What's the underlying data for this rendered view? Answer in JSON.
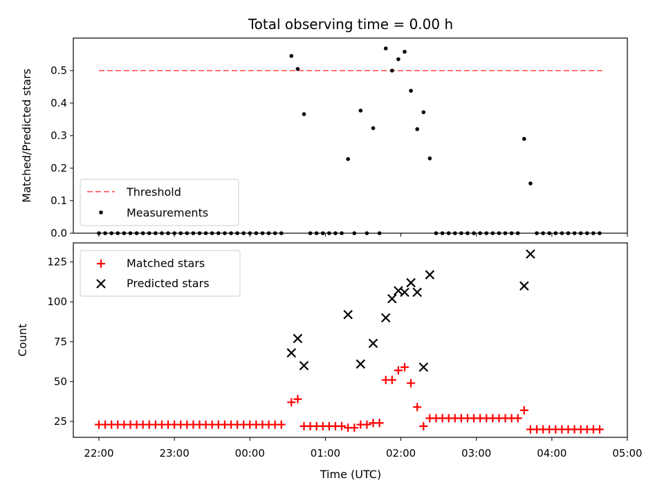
{
  "chart_data": {
    "title": "Total observing time = 0.00 h",
    "xlabel": "Time (UTC)",
    "x_ticks": [
      "22:00",
      "23:00",
      "00:00",
      "01:00",
      "02:00",
      "03:00",
      "04:00",
      "05:00"
    ],
    "panels": [
      {
        "type": "scatter",
        "ylabel": "Matched/Predicted stars",
        "ylim": [
          0,
          0.6
        ],
        "y_ticks": [
          "0.0",
          "0.1",
          "0.2",
          "0.3",
          "0.4",
          "0.5"
        ],
        "legend": {
          "placement": "lower-left",
          "entries": [
            "Threshold",
            "Measurements"
          ]
        },
        "threshold": {
          "name": "Threshold",
          "value": 0.5,
          "x_start": "22:00",
          "x_end": "04:40",
          "color": "#ff6f6f"
        },
        "series": [
          {
            "name": "Measurements",
            "color": "#000000",
            "points": [
              [
                "22:00",
                0
              ],
              [
                "22:05",
                0
              ],
              [
                "22:10",
                0
              ],
              [
                "22:15",
                0
              ],
              [
                "22:20",
                0
              ],
              [
                "22:25",
                0
              ],
              [
                "22:30",
                0
              ],
              [
                "22:35",
                0
              ],
              [
                "22:40",
                0
              ],
              [
                "22:45",
                0
              ],
              [
                "22:50",
                0
              ],
              [
                "22:55",
                0
              ],
              [
                "23:00",
                0
              ],
              [
                "23:05",
                0
              ],
              [
                "23:10",
                0
              ],
              [
                "23:15",
                0
              ],
              [
                "23:20",
                0
              ],
              [
                "23:25",
                0
              ],
              [
                "23:30",
                0
              ],
              [
                "23:35",
                0
              ],
              [
                "23:40",
                0
              ],
              [
                "23:45",
                0
              ],
              [
                "23:50",
                0
              ],
              [
                "23:55",
                0
              ],
              [
                "00:00",
                0
              ],
              [
                "00:05",
                0
              ],
              [
                "00:10",
                0
              ],
              [
                "00:15",
                0
              ],
              [
                "00:20",
                0
              ],
              [
                "00:25",
                0
              ],
              [
                "00:33",
                0.545
              ],
              [
                "00:38",
                0.505
              ],
              [
                "00:43",
                0.366
              ],
              [
                "00:48",
                0
              ],
              [
                "00:53",
                0
              ],
              [
                "00:58",
                0
              ],
              [
                "01:03",
                0
              ],
              [
                "01:08",
                0
              ],
              [
                "01:13",
                0
              ],
              [
                "01:18",
                0.228
              ],
              [
                "01:23",
                0
              ],
              [
                "01:28",
                0.377
              ],
              [
                "01:33",
                0
              ],
              [
                "01:38",
                0.323
              ],
              [
                "01:43",
                0
              ],
              [
                "01:48",
                0.568
              ],
              [
                "01:53",
                0.5
              ],
              [
                "01:58",
                0.535
              ],
              [
                "02:03",
                0.558
              ],
              [
                "02:08",
                0.438
              ],
              [
                "02:13",
                0.32
              ],
              [
                "02:18",
                0.372
              ],
              [
                "02:23",
                0.23
              ],
              [
                "02:28",
                0
              ],
              [
                "02:33",
                0
              ],
              [
                "02:38",
                0
              ],
              [
                "02:43",
                0
              ],
              [
                "02:48",
                0
              ],
              [
                "02:53",
                0
              ],
              [
                "02:58",
                0
              ],
              [
                "03:03",
                0
              ],
              [
                "03:08",
                0
              ],
              [
                "03:13",
                0
              ],
              [
                "03:18",
                0
              ],
              [
                "03:23",
                0
              ],
              [
                "03:28",
                0
              ],
              [
                "03:33",
                0
              ],
              [
                "03:38",
                0.29
              ],
              [
                "03:43",
                0.153
              ],
              [
                "03:48",
                0
              ],
              [
                "03:53",
                0
              ],
              [
                "03:58",
                0
              ],
              [
                "04:03",
                0
              ],
              [
                "04:08",
                0
              ],
              [
                "04:13",
                0
              ],
              [
                "04:18",
                0
              ],
              [
                "04:23",
                0
              ],
              [
                "04:28",
                0
              ],
              [
                "04:33",
                0
              ],
              [
                "04:38",
                0
              ]
            ]
          }
        ]
      },
      {
        "type": "scatter",
        "ylabel": "Count",
        "ylim": [
          15,
          137
        ],
        "y_ticks": [
          "25",
          "50",
          "75",
          "100",
          "125"
        ],
        "legend": {
          "placement": "upper-left",
          "entries": [
            "Matched stars",
            "Predicted stars"
          ]
        },
        "series": [
          {
            "name": "Matched stars",
            "marker": "plus",
            "color": "#ff0000",
            "points": [
              [
                "22:00",
                23
              ],
              [
                "22:05",
                23
              ],
              [
                "22:10",
                23
              ],
              [
                "22:15",
                23
              ],
              [
                "22:20",
                23
              ],
              [
                "22:25",
                23
              ],
              [
                "22:30",
                23
              ],
              [
                "22:35",
                23
              ],
              [
                "22:40",
                23
              ],
              [
                "22:45",
                23
              ],
              [
                "22:50",
                23
              ],
              [
                "22:55",
                23
              ],
              [
                "23:00",
                23
              ],
              [
                "23:05",
                23
              ],
              [
                "23:10",
                23
              ],
              [
                "23:15",
                23
              ],
              [
                "23:20",
                23
              ],
              [
                "23:25",
                23
              ],
              [
                "23:30",
                23
              ],
              [
                "23:35",
                23
              ],
              [
                "23:40",
                23
              ],
              [
                "23:45",
                23
              ],
              [
                "23:50",
                23
              ],
              [
                "23:55",
                23
              ],
              [
                "00:00",
                23
              ],
              [
                "00:05",
                23
              ],
              [
                "00:10",
                23
              ],
              [
                "00:15",
                23
              ],
              [
                "00:20",
                23
              ],
              [
                "00:25",
                23
              ],
              [
                "00:33",
                37
              ],
              [
                "00:38",
                39
              ],
              [
                "00:43",
                22
              ],
              [
                "00:48",
                22
              ],
              [
                "00:53",
                22
              ],
              [
                "00:58",
                22
              ],
              [
                "01:03",
                22
              ],
              [
                "01:08",
                22
              ],
              [
                "01:13",
                22
              ],
              [
                "01:18",
                21
              ],
              [
                "01:23",
                21
              ],
              [
                "01:28",
                23
              ],
              [
                "01:33",
                23
              ],
              [
                "01:38",
                24
              ],
              [
                "01:43",
                24
              ],
              [
                "01:48",
                51
              ],
              [
                "01:53",
                51
              ],
              [
                "01:58",
                57
              ],
              [
                "02:03",
                59
              ],
              [
                "02:08",
                49
              ],
              [
                "02:13",
                34
              ],
              [
                "02:18",
                22
              ],
              [
                "02:23",
                27
              ],
              [
                "02:28",
                27
              ],
              [
                "02:33",
                27
              ],
              [
                "02:38",
                27
              ],
              [
                "02:43",
                27
              ],
              [
                "02:48",
                27
              ],
              [
                "02:53",
                27
              ],
              [
                "02:58",
                27
              ],
              [
                "03:03",
                27
              ],
              [
                "03:08",
                27
              ],
              [
                "03:13",
                27
              ],
              [
                "03:18",
                27
              ],
              [
                "03:23",
                27
              ],
              [
                "03:28",
                27
              ],
              [
                "03:33",
                27
              ],
              [
                "03:38",
                32
              ],
              [
                "03:43",
                20
              ],
              [
                "03:48",
                20
              ],
              [
                "03:53",
                20
              ],
              [
                "03:58",
                20
              ],
              [
                "04:03",
                20
              ],
              [
                "04:08",
                20
              ],
              [
                "04:13",
                20
              ],
              [
                "04:18",
                20
              ],
              [
                "04:23",
                20
              ],
              [
                "04:28",
                20
              ],
              [
                "04:33",
                20
              ],
              [
                "04:38",
                20
              ]
            ]
          },
          {
            "name": "Predicted stars",
            "marker": "x",
            "color": "#000000",
            "points": [
              [
                "00:33",
                68
              ],
              [
                "00:38",
                77
              ],
              [
                "00:43",
                60
              ],
              [
                "01:18",
                92
              ],
              [
                "01:28",
                61
              ],
              [
                "01:38",
                74
              ],
              [
                "01:48",
                90
              ],
              [
                "01:53",
                102
              ],
              [
                "01:58",
                107
              ],
              [
                "02:03",
                106
              ],
              [
                "02:08",
                112
              ],
              [
                "02:13",
                106
              ],
              [
                "02:18",
                59
              ],
              [
                "02:23",
                117
              ],
              [
                "03:38",
                110
              ],
              [
                "03:43",
                130
              ]
            ]
          }
        ]
      }
    ]
  }
}
